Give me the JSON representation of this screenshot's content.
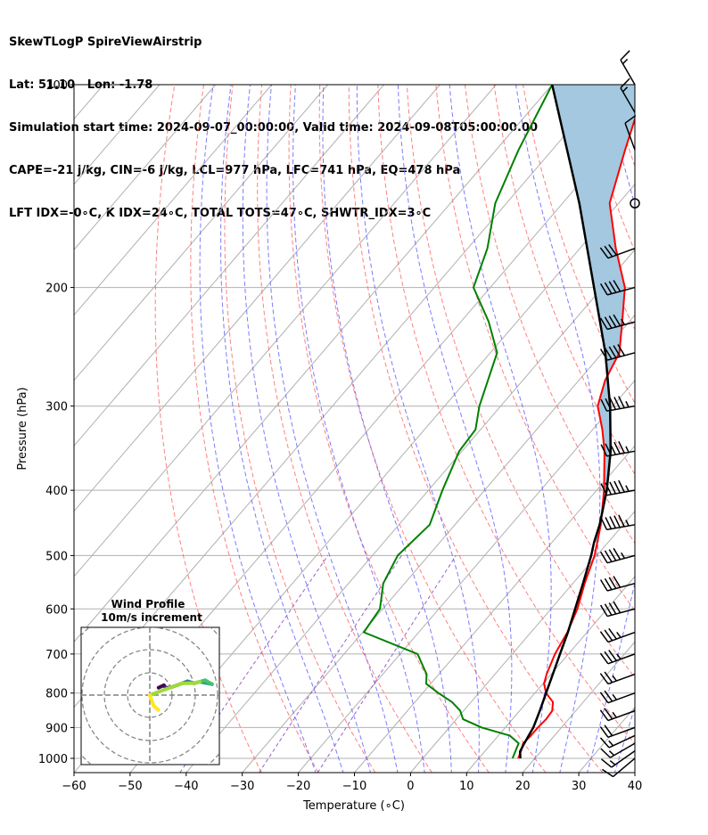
{
  "header": {
    "line1": "SkewTLogP SpireViewAirstrip",
    "line2": "Lat: 51.10   Lon: -1.78",
    "line3": "Simulation start time: 2024-09-07_00:00:00, Valid time: 2024-09-08T05:00:00.00",
    "line4": "CAPE=-21 j/kg, CIN=-6 j/kg, LCL=977 hPa, LFC=741 hPa, EQ=478 hPa",
    "line5": "LFT IDX=-0∘C, K IDX=24∘C, TOTAL TOTS=47∘C, SHWTR_IDX=3∘C"
  },
  "chart_data": {
    "type": "line",
    "subtype": "skew-T log-P",
    "xlabel": "Temperature (∘C)",
    "ylabel": "Pressure (hPa)",
    "xlim": [
      -60,
      40
    ],
    "ylim": [
      1050,
      100
    ],
    "y_scale": "log",
    "x_ticks": [
      "−60",
      "−50",
      "−40",
      "−30",
      "−20",
      "−10",
      "0",
      "10",
      "20",
      "30",
      "40"
    ],
    "y_ticks": [
      "100",
      "200",
      "300",
      "400",
      "500",
      "600",
      "700",
      "800",
      "900",
      "1000"
    ],
    "grid": true,
    "colors": {
      "temperature": "#ff0000",
      "dewpoint": "#008000",
      "parcel": "#000000",
      "cape_fill": "#a3c8e0",
      "dry_adiabats": "#ff6060",
      "moist_adiabats": "#5a5aff",
      "mixing_ratio": "#9050c0",
      "isotherms": "#b0b0b0"
    },
    "series": [
      {
        "key": "temperature",
        "pressure": [
          1000,
          975,
          950,
          925,
          900,
          875,
          850,
          825,
          800,
          775,
          750,
          700,
          650,
          600,
          550,
          500,
          450,
          400,
          350,
          325,
          300,
          275,
          250,
          225,
          200,
          175,
          150,
          125,
          110,
          100
        ],
        "values": [
          17.0,
          16.4,
          15.6,
          15.8,
          15.8,
          16.0,
          15.8,
          14.6,
          12.0,
          10.2,
          9.2,
          7.6,
          6.5,
          4.7,
          2.1,
          -0.4,
          -4.0,
          -8.7,
          -14.6,
          -18.3,
          -22.7,
          -25.3,
          -27.0,
          -31.2,
          -36.0,
          -43.6,
          -51.6,
          -57.0,
          -60.6,
          -62.5
        ]
      },
      {
        "key": "dewpoint",
        "pressure": [
          1000,
          975,
          950,
          925,
          900,
          875,
          850,
          825,
          800,
          775,
          750,
          700,
          650,
          600,
          550,
          500,
          450,
          400,
          350,
          325,
          300,
          250,
          225,
          200,
          175,
          150,
          125,
          100
        ],
        "values": [
          16.0,
          15.4,
          14.8,
          12.0,
          5.8,
          1.2,
          -0.6,
          -3.4,
          -7.2,
          -10.8,
          -12.2,
          -16.9,
          -29.8,
          -30.5,
          -33.8,
          -35.5,
          -34.5,
          -37.5,
          -40.5,
          -40.9,
          -43.8,
          -48.8,
          -55.0,
          -63.0,
          -66.5,
          -72.0,
          -76.0,
          -80.0
        ]
      },
      {
        "key": "parcel",
        "pressure": [
          1000,
          977,
          950,
          900,
          850,
          800,
          741,
          700,
          650,
          600,
          550,
          500,
          478,
          450,
          400,
          350,
          300,
          250,
          200,
          150,
          100
        ],
        "values": [
          17.4,
          16.3,
          15.8,
          15.0,
          13.6,
          12.0,
          10.0,
          8.5,
          6.6,
          4.3,
          1.8,
          -1.0,
          -2.5,
          -4.2,
          -8.2,
          -13.5,
          -20.5,
          -29.5,
          -41.5,
          -57.0,
          -80.0
        ]
      }
    ],
    "wind_barbs": {
      "pressure": [
        1000,
        975,
        950,
        925,
        900,
        850,
        800,
        750,
        700,
        650,
        600,
        550,
        500,
        450,
        400,
        350,
        300,
        250,
        225,
        200,
        175,
        150,
        125,
        110,
        100
      ],
      "speed_kt": [
        10,
        15,
        15,
        15,
        20,
        25,
        25,
        25,
        35,
        35,
        40,
        40,
        45,
        55,
        55,
        55,
        55,
        50,
        45,
        40,
        30,
        0,
        10,
        15,
        15
      ],
      "direction_deg": [
        230,
        235,
        240,
        245,
        250,
        250,
        250,
        250,
        250,
        250,
        255,
        255,
        255,
        260,
        260,
        260,
        260,
        255,
        255,
        255,
        250,
        0,
        340,
        330,
        330
      ]
    },
    "inset": {
      "title": "Wind Profile",
      "subtitle": "10m/s increment"
    }
  }
}
